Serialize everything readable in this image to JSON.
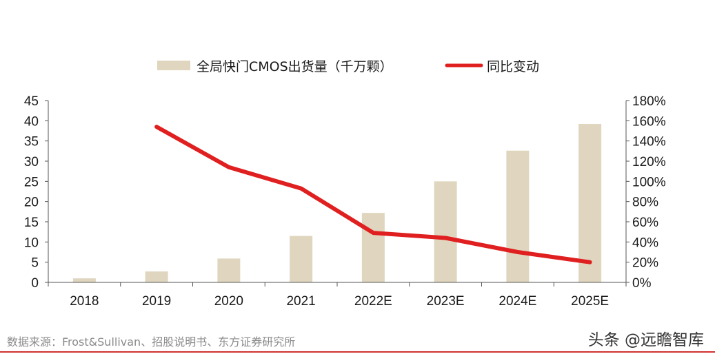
{
  "chart_data": {
    "type": "bar",
    "categories": [
      "2018",
      "2019",
      "2020",
      "2021",
      "2022E",
      "2023E",
      "2024E",
      "2025E"
    ],
    "series": [
      {
        "name": "全局快门CMOS出货量（千万颗）",
        "kind": "bar",
        "axis": "left",
        "values": [
          1.0,
          2.7,
          5.9,
          11.5,
          17.2,
          25.0,
          32.6,
          39.2
        ]
      },
      {
        "name": "同比变动",
        "kind": "line",
        "axis": "right",
        "values": [
          null,
          154,
          114,
          93,
          49,
          44,
          30,
          20
        ]
      }
    ],
    "left_axis": {
      "min": 0,
      "max": 45,
      "step": 5,
      "ticks": [
        "0",
        "5",
        "10",
        "15",
        "20",
        "25",
        "30",
        "35",
        "40",
        "45"
      ]
    },
    "right_axis": {
      "min": 0,
      "max": 180,
      "step": 20,
      "ticks": [
        "0%",
        "20%",
        "40%",
        "60%",
        "80%",
        "100%",
        "120%",
        "140%",
        "160%",
        "180%"
      ]
    },
    "colors": {
      "bar": "#e0d6bf",
      "line": "#e02020",
      "axis": "#555555"
    },
    "legend_position": "top-center",
    "grid": false
  },
  "footer": {
    "source": "数据来源：Frost&Sullivan、招股说明书、东方证券研究所",
    "watermark": "头条 @远瞻智库"
  }
}
